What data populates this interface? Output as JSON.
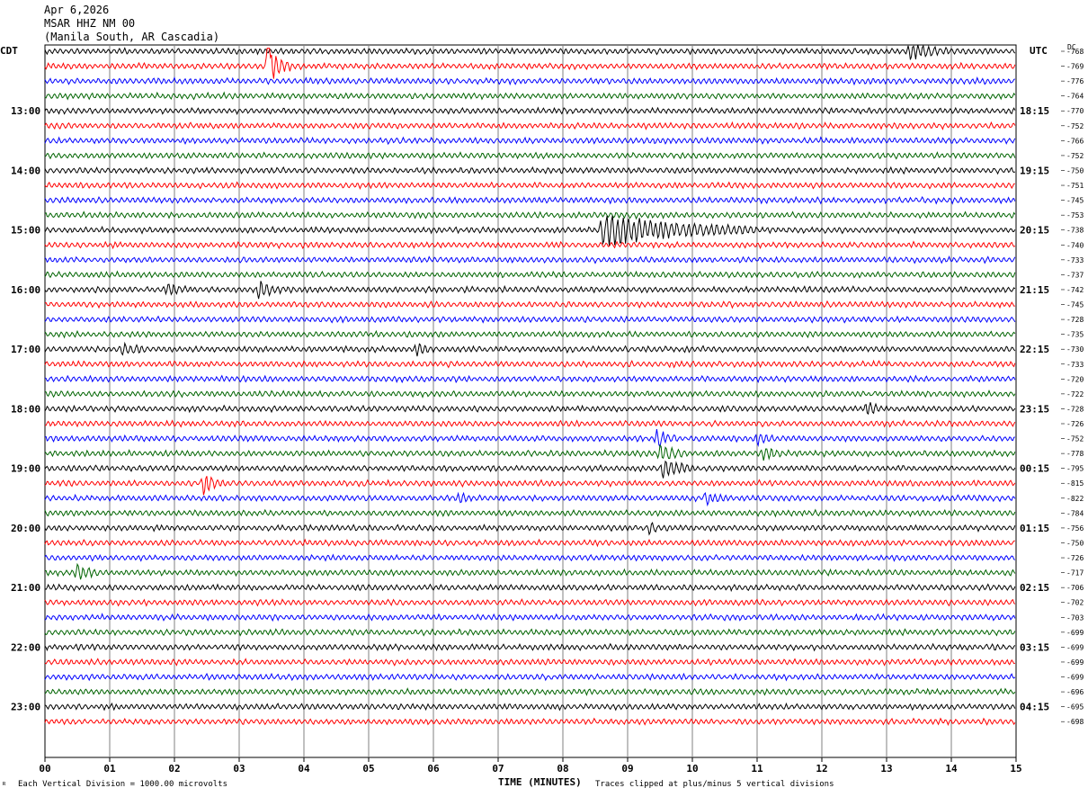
{
  "header": {
    "date": "Apr 6,2026",
    "station": "MSAR HHZ NM 00",
    "location": "(Manila South, AR Cascadia)"
  },
  "left_axis_label": "CDT",
  "right_axis_label": "UTC",
  "dc_label": "DC",
  "footer": {
    "vertical_division": "Each Vertical Division = 1000.00 microvolts",
    "x_title": "TIME (MINUTES)",
    "clip_note": "Traces clipped at plus/minus 5 vertical divisions",
    "corner_mark": "ᴿ"
  },
  "colors": {
    "trace_cycle": [
      "#000000",
      "#ff0000",
      "#0000ff",
      "#006400"
    ],
    "grid": "#808080"
  },
  "chart_data": {
    "type": "line",
    "subtype": "helicorder",
    "title": "MSAR HHZ NM 00",
    "xlabel": "TIME (MINUTES)",
    "xlim": [
      0,
      15
    ],
    "x_ticks": [
      "00",
      "01",
      "02",
      "03",
      "04",
      "05",
      "06",
      "07",
      "08",
      "09",
      "10",
      "11",
      "12",
      "13",
      "14",
      "15"
    ],
    "rows_per_hour": 4,
    "left_hour_labels": [
      "13:00",
      "14:00",
      "15:00",
      "16:00",
      "17:00",
      "18:00",
      "19:00",
      "20:00",
      "21:00",
      "22:00",
      "23:00"
    ],
    "right_hour_labels": [
      "18:15",
      "19:15",
      "20:15",
      "21:15",
      "22:15",
      "23:15",
      "00:15",
      "01:15",
      "02:15",
      "03:15",
      "04:15"
    ],
    "dc_offsets": [
      -768,
      -769,
      -776,
      -764,
      -770,
      -752,
      -766,
      -752,
      -750,
      -751,
      -745,
      -753,
      -738,
      -740,
      -733,
      -737,
      -742,
      -745,
      -728,
      -735,
      -730,
      -733,
      -720,
      -722,
      -728,
      -726,
      -752,
      -778,
      -795,
      -815,
      -822,
      -784,
      -756,
      -750,
      -726,
      -717,
      -706,
      -702,
      -703,
      -699,
      -699,
      -699,
      -699,
      -696,
      -695,
      -698
    ],
    "events": [
      {
        "row": 1,
        "minute": 3.45,
        "amplitude": 3.0,
        "duration": 0.35
      },
      {
        "row": 0,
        "minute": 13.35,
        "amplitude": 1.1,
        "duration": 0.6
      },
      {
        "row": 12,
        "minute": 8.6,
        "amplitude": 2.3,
        "duration": 2.4
      },
      {
        "row": 16,
        "minute": 3.3,
        "amplitude": 1.2,
        "duration": 0.4
      },
      {
        "row": 16,
        "minute": 1.9,
        "amplitude": 0.9,
        "duration": 0.3
      },
      {
        "row": 20,
        "minute": 1.2,
        "amplitude": 0.8,
        "duration": 0.4
      },
      {
        "row": 20,
        "minute": 5.75,
        "amplitude": 0.8,
        "duration": 0.3
      },
      {
        "row": 24,
        "minute": 12.7,
        "amplitude": 0.9,
        "duration": 0.25
      },
      {
        "row": 26,
        "minute": 9.45,
        "amplitude": 1.3,
        "duration": 0.35
      },
      {
        "row": 26,
        "minute": 11.0,
        "amplitude": 0.9,
        "duration": 0.3
      },
      {
        "row": 27,
        "minute": 9.5,
        "amplitude": 1.2,
        "duration": 0.4
      },
      {
        "row": 27,
        "minute": 11.1,
        "amplitude": 1.0,
        "duration": 0.3
      },
      {
        "row": 28,
        "minute": 9.55,
        "amplitude": 1.4,
        "duration": 0.5
      },
      {
        "row": 29,
        "minute": 2.45,
        "amplitude": 1.3,
        "duration": 0.35
      },
      {
        "row": 30,
        "minute": 10.2,
        "amplitude": 0.9,
        "duration": 0.4
      },
      {
        "row": 30,
        "minute": 6.4,
        "amplitude": 0.6,
        "duration": 0.2
      },
      {
        "row": 32,
        "minute": 9.35,
        "amplitude": 0.9,
        "duration": 0.15
      },
      {
        "row": 35,
        "minute": 0.5,
        "amplitude": 1.1,
        "duration": 0.35
      }
    ]
  }
}
